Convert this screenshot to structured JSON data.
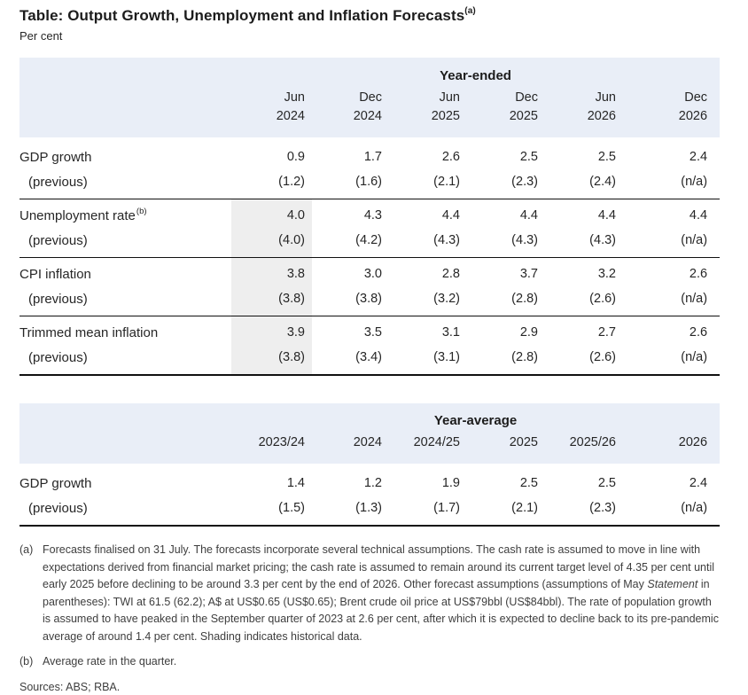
{
  "page": {
    "title": "Table: Output Growth, Unemployment and Inflation Forecasts",
    "title_sup": "(a)",
    "subtitle": "Per cent"
  },
  "colors": {
    "header_bg": "#e9eef7",
    "shading_bg": "#eeeeee",
    "text": "#262626",
    "rule": "#111111"
  },
  "table1": {
    "group_header": "Year-ended",
    "columns": [
      {
        "month": "Jun",
        "year": "2024"
      },
      {
        "month": "Dec",
        "year": "2024"
      },
      {
        "month": "Jun",
        "year": "2025"
      },
      {
        "month": "Dec",
        "year": "2025"
      },
      {
        "month": "Jun",
        "year": "2026"
      },
      {
        "month": "Dec",
        "year": "2026"
      }
    ],
    "rows": [
      {
        "label": "GDP growth",
        "sup": "",
        "values": [
          "0.9",
          "1.7",
          "2.6",
          "2.5",
          "2.5",
          "2.4"
        ]
      },
      {
        "label": "(previous)",
        "sup": "",
        "values": [
          "(1.2)",
          "(1.6)",
          "(2.1)",
          "(2.3)",
          "(2.4)",
          "(n/a)"
        ]
      },
      {
        "label": "Unemployment rate",
        "sup": "(b)",
        "values": [
          "4.0",
          "4.3",
          "4.4",
          "4.4",
          "4.4",
          "4.4"
        ]
      },
      {
        "label": "(previous)",
        "sup": "",
        "values": [
          "(4.0)",
          "(4.2)",
          "(4.3)",
          "(4.3)",
          "(4.3)",
          "(n/a)"
        ]
      },
      {
        "label": "CPI inflation",
        "sup": "",
        "values": [
          "3.8",
          "3.0",
          "2.8",
          "3.7",
          "3.2",
          "2.6"
        ]
      },
      {
        "label": "(previous)",
        "sup": "",
        "values": [
          "(3.8)",
          "(3.8)",
          "(3.2)",
          "(2.8)",
          "(2.6)",
          "(n/a)"
        ]
      },
      {
        "label": "Trimmed mean inflation",
        "sup": "",
        "values": [
          "3.9",
          "3.5",
          "3.1",
          "2.9",
          "2.7",
          "2.6"
        ]
      },
      {
        "label": "(previous)",
        "sup": "",
        "values": [
          "(3.8)",
          "(3.4)",
          "(3.1)",
          "(2.8)",
          "(2.6)",
          "(n/a)"
        ]
      }
    ],
    "shading_note": "Shaded Jun 2024 cells indicate historical data"
  },
  "table2": {
    "group_header": "Year-average",
    "columns": [
      "2023/24",
      "2024",
      "2024/25",
      "2025",
      "2025/26",
      "2026"
    ],
    "rows": [
      {
        "label": "GDP growth",
        "sup": "",
        "values": [
          "1.4",
          "1.2",
          "1.9",
          "2.5",
          "2.5",
          "2.4"
        ]
      },
      {
        "label": "(previous)",
        "sup": "",
        "values": [
          "(1.5)",
          "(1.3)",
          "(1.7)",
          "(2.1)",
          "(2.3)",
          "(n/a)"
        ]
      }
    ]
  },
  "footnotes": {
    "a": {
      "marker": "(a)",
      "text_before_italic": "Forecasts finalised on 31 July. The forecasts incorporate several technical assumptions. The cash rate is assumed to move in line with expectations derived from financial market pricing; the cash rate is assumed to remain around its current target level of 4.35 per cent until early 2025 before declining to be around 3.3 per cent by the end of 2026. Other forecast assumptions (assumptions of May ",
      "italic": "Statement",
      "text_after_italic": " in parentheses): TWI at 61.5 (62.2); A$ at US$0.65 (US$0.65); Brent crude oil price at US$79bbl (US$84bbl). The rate of population growth is assumed to have peaked in the September quarter of 2023 at 2.6 per cent, after which it is expected to decline back to its pre-pandemic average of around 1.4 per cent. Shading indicates historical data."
    },
    "b": {
      "marker": "(b)",
      "text": "Average rate in the quarter."
    }
  },
  "sources": "Sources: ABS; RBA."
}
